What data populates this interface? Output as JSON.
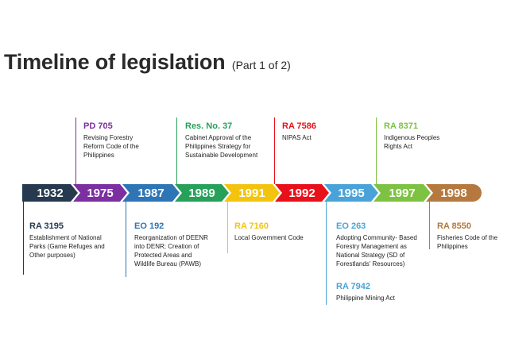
{
  "title": {
    "main": "Timeline of legislation",
    "sub": "(Part 1 of 2)"
  },
  "years": [
    "1932",
    "1975",
    "1987",
    "1989",
    "1991",
    "1992",
    "1995",
    "1997",
    "1998"
  ],
  "colors": {
    "y1932": "#26394f",
    "y1975": "#7b2fa0",
    "y1987": "#2e75b6",
    "y1989": "#27a05a",
    "y1991": "#f2c40f",
    "y1992": "#e8101a",
    "y1995": "#4aa3d8",
    "y1997": "#7dc242",
    "y1998": "#b5783e"
  },
  "events": [
    {
      "code": "RA 3195",
      "desc": "Establishment of National Parks (Game Refuges and Other purposes)"
    },
    {
      "code": "PD 705",
      "desc": "Revising Forestry Reform Code of the Philippines"
    },
    {
      "code": "EO 192",
      "desc": "Reorganization of DEENR into DENR; Creation of Protected Areas and Wildlife Bureau (PAWB)"
    },
    {
      "code": "Res. No. 37",
      "desc": "Cabinet Approval of the Philippines Strategy for Sustainable Development"
    },
    {
      "code": "RA 7160",
      "desc": "Local Government Code"
    },
    {
      "code": "RA 7586",
      "desc": "NIPAS Act"
    },
    {
      "code": "EO 263",
      "desc": "Adopting Community- Based Forestry Management  as National Strategy (SD of Forestlands’ Resources)"
    },
    {
      "code": "RA 7942",
      "desc": "Philippine Mining Act"
    },
    {
      "code": "RA 8371",
      "desc": "Indigenous Peoples Rights Act"
    },
    {
      "code": "RA 8550",
      "desc": "Fisheries Code of the Philippines"
    }
  ]
}
